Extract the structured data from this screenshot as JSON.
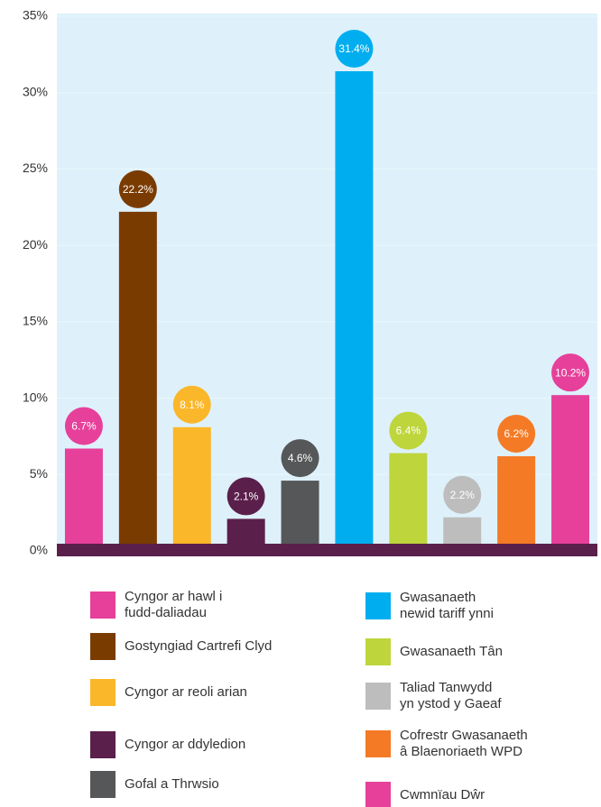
{
  "chart_data": {
    "type": "bar",
    "categories": [
      "Cyngor ar hawl i fudd-daliadau",
      "Gostyngiad Cartrefi Clyd",
      "Cyngor ar reoli arian",
      "Cyngor ar ddyledion",
      "Gofal a Thrwsio",
      "Gwasanaeth newid tariff ynni",
      "Gwasanaeth Tân",
      "Taliad Tanwydd yn ystod y Gaeaf",
      "Cofrestr Gwasanaeth â Blaenoriaeth WPD",
      "Cwmnïau Dŵr"
    ],
    "values": [
      6.7,
      22.2,
      8.1,
      2.1,
      4.6,
      31.4,
      6.4,
      2.2,
      6.2,
      10.2
    ],
    "value_labels": [
      "6.7%",
      "22.2%",
      "8.1%",
      "2.1%",
      "4.6%",
      "31.4%",
      "6.4%",
      "2.2%",
      "6.2%",
      "10.2%"
    ],
    "colors": [
      "#e6409a",
      "#7a3b00",
      "#fbb72a",
      "#5b1f4b",
      "#555759",
      "#00aeef",
      "#bed53c",
      "#bdbdbd",
      "#f47a25",
      "#e6409a"
    ],
    "ylim": [
      0,
      35
    ],
    "yticks": [
      {
        "value": 0,
        "label": "0%"
      },
      {
        "value": 5,
        "label": "5%"
      },
      {
        "value": 10,
        "label": "10%"
      },
      {
        "value": 15,
        "label": "15%"
      },
      {
        "value": 20,
        "label": "20%"
      },
      {
        "value": 25,
        "label": "25%"
      },
      {
        "value": 30,
        "label": "30%"
      },
      {
        "value": 35,
        "label": "35%"
      }
    ],
    "grid": true
  }
}
